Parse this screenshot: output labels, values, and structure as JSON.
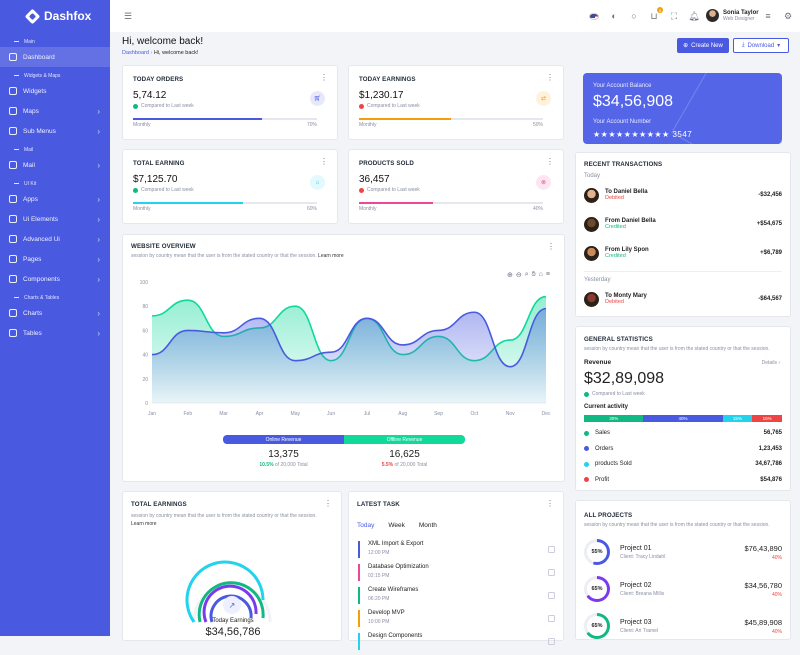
{
  "app": {
    "name": "Dashfox"
  },
  "sidebar": {
    "sections": [
      {
        "label": "Main",
        "items": [
          {
            "label": "Dashboard",
            "active": true,
            "chevron": false
          }
        ]
      },
      {
        "label": "Widgets & Maps",
        "items": [
          {
            "label": "Widgets",
            "chevron": false
          },
          {
            "label": "Maps",
            "chevron": true
          },
          {
            "label": "Sub Menus",
            "chevron": true
          }
        ]
      },
      {
        "label": "Mail",
        "items": [
          {
            "label": "Mail",
            "chevron": true
          }
        ]
      },
      {
        "label": "UI Kit",
        "items": [
          {
            "label": "Apps",
            "chevron": true
          },
          {
            "label": "Ui Elements",
            "chevron": true
          },
          {
            "label": "Advanced Ui",
            "chevron": true
          },
          {
            "label": "Pages",
            "chevron": true
          },
          {
            "label": "Components",
            "chevron": true
          }
        ]
      },
      {
        "label": "Charts & Tables",
        "items": [
          {
            "label": "Charts",
            "chevron": true
          },
          {
            "label": "Tables",
            "chevron": true
          }
        ]
      }
    ]
  },
  "topbar": {
    "cart_badge": "5",
    "user_name": "Sonia Taylor",
    "user_role": "Web Designer"
  },
  "header": {
    "title": "Hi, welcome back!",
    "breadcrumb_root": "Dashboard",
    "breadcrumb_current": "Hi, welcome back!",
    "create_label": "Create New",
    "download_label": "Download"
  },
  "stats": [
    {
      "title": "TODAY ORDERS",
      "value": "5,74.12",
      "note": "Compared to Last week",
      "progress_label": "Monthly",
      "progress_pct": "70%",
      "progress": 0.7,
      "color": "#4a5ae0",
      "trend": "up"
    },
    {
      "title": "TODAY EARNINGS",
      "value": "$1,230.17",
      "note": "Compared to Last week",
      "progress_label": "Monthly",
      "progress_pct": "50%",
      "progress": 0.5,
      "color": "#f59e0b",
      "trend": "down"
    },
    {
      "title": "TOTAL EARNING",
      "value": "$7,125.70",
      "note": "Compared to Last week",
      "progress_label": "Monthly",
      "progress_pct": "60%",
      "progress": 0.6,
      "color": "#22d3ee",
      "trend": "up"
    },
    {
      "title": "PRODUCTS SOLD",
      "value": "36,457",
      "note": "Compared to Last week",
      "progress_label": "Monthly",
      "progress_pct": "40%",
      "progress": 0.4,
      "color": "#ec4899",
      "trend": "down"
    }
  ],
  "balance": {
    "label": "Your Account Balance",
    "amount": "$34,56,908",
    "acct_label": "Your Account Number",
    "acct_number": "★★★★★★★★★★ 3547"
  },
  "transactions": {
    "title": "RECENT TRANSACTIONS",
    "groups": [
      {
        "label": "Today",
        "items": [
          {
            "name": "To Daniel Bella",
            "status": "Debited",
            "amount": "-$32,456",
            "color": "#ef4444"
          },
          {
            "name": "From Daniel Bella",
            "status": "Credited",
            "amount": "+$54,675",
            "color": "#10b981"
          },
          {
            "name": "From Lily Spon",
            "status": "Credited",
            "amount": "+$6,789",
            "color": "#10b981"
          }
        ]
      },
      {
        "label": "Yesterday",
        "items": [
          {
            "name": "To Monty Mary",
            "status": "Debited",
            "amount": "-$64,567",
            "color": "#ef4444"
          }
        ]
      }
    ]
  },
  "overview": {
    "title": "WEBSITE OVERVIEW",
    "subtitle": "session by country mean that the user is from the stated country or that the session.",
    "learn": "Learn more",
    "legend_online": "Online Revenue",
    "legend_offline": "Offline Revenue",
    "online_value": "13,375",
    "online_pct": "10.5%",
    "online_of": "of 20,000 Total",
    "offline_value": "16,625",
    "offline_pct": "5.5%",
    "offline_of": "of 20,000 Total"
  },
  "chart_data": {
    "type": "area",
    "x": [
      "Jan",
      "Feb",
      "Mar",
      "Apr",
      "May",
      "Jun",
      "Jul",
      "Aug",
      "Sep",
      "Oct",
      "Nov",
      "Dec"
    ],
    "ylim": [
      0,
      100
    ],
    "yticks": [
      "0",
      "20",
      "40",
      "60",
      "80",
      "100"
    ],
    "series": [
      {
        "name": "Online Revenue",
        "color": "#4a5ae0",
        "values": [
          40,
          60,
          58,
          70,
          35,
          42,
          70,
          48,
          60,
          75,
          30,
          78
        ]
      },
      {
        "name": "Offline Revenue",
        "color": "#10d99a",
        "values": [
          72,
          85,
          55,
          62,
          80,
          35,
          70,
          40,
          55,
          35,
          52,
          88
        ]
      }
    ]
  },
  "total_earnings": {
    "title": "TOTAL EARNINGS",
    "subtitle": "session by country mean that the user is from the stated country or that the session.",
    "learn": "Learn more",
    "center_label": "Today Earnings",
    "center_value": "$34,56,786"
  },
  "tasks": {
    "title": "LATEST TASK",
    "tabs": [
      "Today",
      "Week",
      "Month"
    ],
    "items": [
      {
        "title": "XML Import & Export",
        "time": "12:00 PM",
        "color": "#4a5ae0"
      },
      {
        "title": "Database Optimization",
        "time": "02:15 PM",
        "color": "#ec4899"
      },
      {
        "title": "Create Wireframes",
        "time": "06:20 PM",
        "color": "#10b981"
      },
      {
        "title": "Develop MVP",
        "time": "10:00 PM",
        "color": "#f59e0b"
      },
      {
        "title": "Design Components",
        "time": "",
        "color": "#22d3ee"
      }
    ]
  },
  "general": {
    "title": "GENERAL STATISTICS",
    "subtitle": "session by country mean that the user is from the stated country or that the session.",
    "revenue_label": "Revenue",
    "details": "Details ›",
    "revenue": "$32,89,098",
    "revenue_note": "Compared to Last week",
    "activity_label": "Current activity",
    "activity": [
      {
        "pct": "30%",
        "v": 0.3,
        "color": "#10b981"
      },
      {
        "pct": "40%",
        "v": 0.4,
        "color": "#4a5ae0"
      },
      {
        "pct": "15%",
        "v": 0.15,
        "color": "#22d3ee"
      },
      {
        "pct": "15%",
        "v": 0.15,
        "color": "#ef4444"
      }
    ],
    "rows": [
      {
        "label": "Sales",
        "value": "56,765",
        "color": "#10b981"
      },
      {
        "label": "Orders",
        "value": "1,23,453",
        "color": "#4a5ae0"
      },
      {
        "label": "products Sold",
        "value": "34,67,786",
        "color": "#22d3ee"
      },
      {
        "label": "Profit",
        "value": "$54,876",
        "color": "#ef4444"
      }
    ]
  },
  "projects": {
    "title": "ALL PROJECTS",
    "subtitle": "session by country mean that the user is from the stated country or that the session.",
    "items": [
      {
        "name": "Project 01",
        "client": "Client: Tracy Lindahl",
        "pct": "55%",
        "v": 0.55,
        "amount": "$76,43,890",
        "change": "40%",
        "color": "#4a5ae0"
      },
      {
        "name": "Project 02",
        "client": "Client: Breana Millis",
        "pct": "65%",
        "v": 0.65,
        "amount": "$34,56,780",
        "change": "40%",
        "color": "#7c3aed"
      },
      {
        "name": "Project 03",
        "client": "Client: Ari Tramel",
        "pct": "65%",
        "v": 0.65,
        "amount": "$45,89,908",
        "change": "40%",
        "color": "#10b981"
      }
    ]
  }
}
